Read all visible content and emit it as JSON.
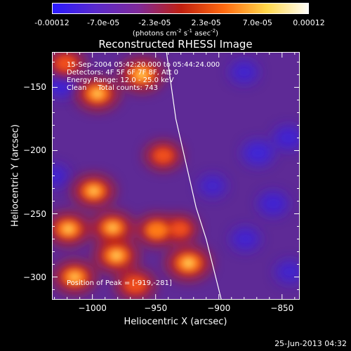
{
  "colorbar": {
    "tick_labels": [
      "-0.00012",
      "-7.0e-05",
      "-2.3e-05",
      "2.3e-05",
      "7.0e-05",
      "0.00012"
    ],
    "units_prefix": "(photons cm",
    "units_exp1": "-2",
    "units_mid": " s",
    "units_exp2": "-1",
    "units_mid2": " asec",
    "units_exp3": "-2",
    "units_suffix": ")",
    "colors": [
      "#2b1aff",
      "#5a2acc",
      "#7f2a9a",
      "#c02010",
      "#ff6a10",
      "#ffd84a",
      "#ffffff"
    ]
  },
  "annotations": {
    "line1": "15-Sep-2004 05:42:20.000 to 05:44:24.000",
    "line2": "Detectors: 4F 5F 6F 7F 8F, Att 0",
    "line3": "Energy Range: 12.0 - 25.0 keV",
    "line4_a": "Clean",
    "line4_b": "Total counts: 743",
    "peak": "Position of Peak = [-919,-281]"
  },
  "footer": {
    "date": "25-Jun-2013 04:32"
  },
  "chart_data": {
    "type": "heatmap",
    "title": "Reconstructed RHESSI Image",
    "xlabel": "Heliocentric X (arcsec)",
    "ylabel": "Heliocentric Y (arcsec)",
    "xlim": [
      -1032,
      -836
    ],
    "ylim": [
      -318,
      -122
    ],
    "x_ticks": [
      -1000,
      -950,
      -900,
      -850
    ],
    "y_ticks": [
      -300,
      -250,
      -200,
      -150
    ],
    "x_tick_labels": [
      "−1000",
      "−950",
      "−900",
      "−850"
    ],
    "y_tick_labels": [
      "−300",
      "−250",
      "−200",
      "−150"
    ],
    "colorbar_range": [
      -0.00012,
      0.00012
    ],
    "limb_curve": [
      [
        -942,
        -118
      ],
      [
        -934,
        -175
      ],
      [
        -926,
        -210
      ],
      [
        -918,
        -245
      ],
      [
        -910,
        -270
      ],
      [
        -898,
        -318
      ]
    ],
    "bright_sources": [
      {
        "x": -961,
        "y": -140,
        "level": 0.95
      },
      {
        "x": -996,
        "y": -155,
        "level": 0.9
      },
      {
        "x": -1021,
        "y": -131,
        "level": 0.6
      },
      {
        "x": -944,
        "y": -204,
        "level": 0.55
      },
      {
        "x": -999,
        "y": -232,
        "level": 0.85
      },
      {
        "x": -1019,
        "y": -262,
        "level": 0.9
      },
      {
        "x": -984,
        "y": -261,
        "level": 0.85
      },
      {
        "x": -949,
        "y": -263,
        "level": 0.8
      },
      {
        "x": -981,
        "y": -283,
        "level": 0.95
      },
      {
        "x": -1014,
        "y": -300,
        "level": 0.85
      },
      {
        "x": -924,
        "y": -289,
        "level": 1.0
      },
      {
        "x": -966,
        "y": -306,
        "level": 0.7
      },
      {
        "x": -931,
        "y": -262,
        "level": 0.55
      }
    ],
    "negative_sources": [
      {
        "x": -1024,
        "y": -147,
        "level": 0.9
      },
      {
        "x": -869,
        "y": -202,
        "level": 0.8
      },
      {
        "x": -845,
        "y": -190,
        "level": 0.7
      },
      {
        "x": -857,
        "y": -242,
        "level": 0.7
      },
      {
        "x": -879,
        "y": -270,
        "level": 0.65
      },
      {
        "x": -880,
        "y": -138,
        "level": 0.6
      },
      {
        "x": -844,
        "y": -296,
        "level": 0.6
      },
      {
        "x": -1030,
        "y": -220,
        "level": 0.6
      },
      {
        "x": -905,
        "y": -228,
        "level": 0.55
      }
    ]
  }
}
